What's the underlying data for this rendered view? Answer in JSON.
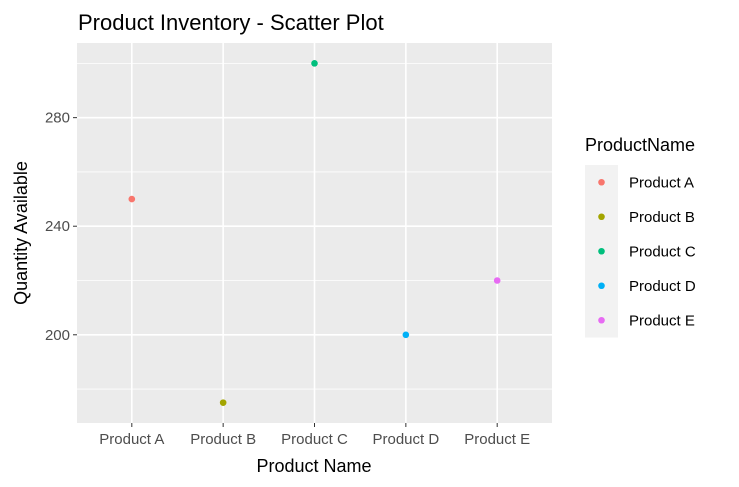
{
  "chart_data": {
    "type": "scatter",
    "title": "Product Inventory - Scatter Plot",
    "xlabel": "Product Name",
    "ylabel": "Quantity Available",
    "categories": [
      "Product A",
      "Product B",
      "Product C",
      "Product D",
      "Product E"
    ],
    "values": [
      250,
      175,
      300,
      200,
      220
    ],
    "colors": [
      "#F8766D",
      "#A3A500",
      "#00BF7D",
      "#00B0F6",
      "#E76BF3"
    ],
    "ylim": [
      167.5,
      307.5
    ],
    "yticks": [
      200,
      240,
      280
    ],
    "grid": true,
    "panel_background": "#EBEBEB",
    "legend": {
      "title": "ProductName",
      "placement": "right",
      "items": [
        "Product A",
        "Product B",
        "Product C",
        "Product D",
        "Product E"
      ]
    }
  }
}
